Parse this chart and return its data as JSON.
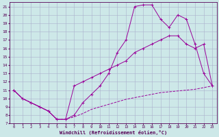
{
  "xlabel": "Windchill (Refroidissement éolien,°C)",
  "background_color": "#cde8e8",
  "grid_color": "#aab0cc",
  "line_color": "#990099",
  "xlim": [
    -0.5,
    23.5
  ],
  "ylim": [
    7,
    21.5
  ],
  "yticks": [
    7,
    8,
    9,
    10,
    11,
    12,
    13,
    14,
    15,
    16,
    17,
    18,
    19,
    20,
    21
  ],
  "xticks": [
    0,
    1,
    2,
    3,
    4,
    5,
    6,
    7,
    8,
    9,
    10,
    11,
    12,
    13,
    14,
    15,
    16,
    17,
    18,
    19,
    20,
    21,
    22,
    23
  ],
  "line1_x": [
    0,
    1,
    2,
    3,
    4,
    5,
    6,
    7,
    8,
    9,
    10,
    11,
    12,
    13,
    14,
    15,
    16,
    17,
    18,
    19,
    20,
    21,
    22,
    23
  ],
  "line1_y": [
    11,
    10,
    9.5,
    9.0,
    8.5,
    7.5,
    7.5,
    7.8,
    8.2,
    8.7,
    9.0,
    9.3,
    9.6,
    9.9,
    10.1,
    10.3,
    10.5,
    10.7,
    10.8,
    10.9,
    11.0,
    11.1,
    11.3,
    11.5
  ],
  "line2_x": [
    0,
    1,
    2,
    3,
    4,
    5,
    6,
    7,
    8,
    9,
    10,
    11,
    12,
    13,
    14,
    15,
    16,
    17,
    18,
    19,
    20,
    21,
    22,
    23
  ],
  "line2_y": [
    11,
    10,
    9.5,
    9.0,
    8.5,
    7.5,
    7.5,
    8.0,
    9.5,
    10.5,
    11.5,
    13.0,
    15.5,
    17.0,
    21.0,
    21.2,
    21.2,
    19.5,
    18.5,
    20.0,
    19.5,
    16.5,
    13.0,
    11.5
  ],
  "line3_x": [
    0,
    1,
    2,
    3,
    4,
    5,
    6,
    7,
    8,
    9,
    10,
    11,
    12,
    13,
    14,
    15,
    16,
    17,
    18,
    19,
    20,
    21,
    22,
    23
  ],
  "line3_y": [
    11,
    10,
    9.5,
    9.0,
    8.5,
    7.5,
    7.5,
    11.5,
    12.0,
    12.5,
    13.0,
    13.5,
    14.0,
    14.5,
    15.5,
    16.0,
    16.5,
    17.0,
    17.5,
    17.5,
    16.5,
    16.0,
    16.5,
    11.5
  ],
  "figsize": [
    3.2,
    2.0
  ],
  "dpi": 100
}
